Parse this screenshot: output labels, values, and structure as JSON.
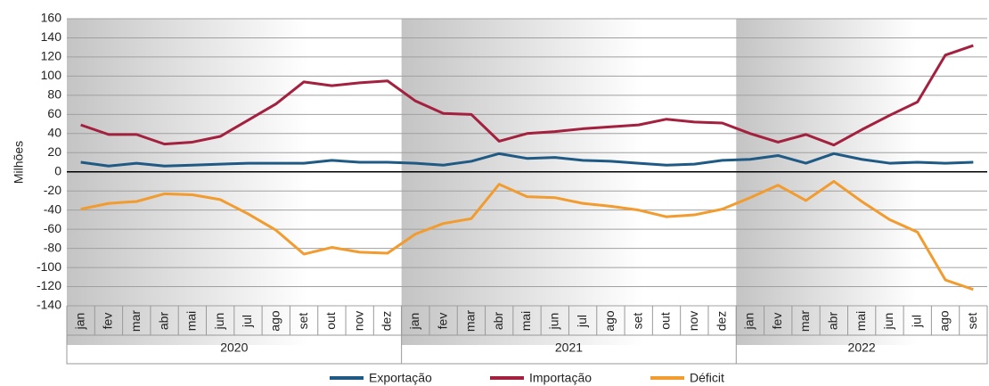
{
  "chart_data": {
    "type": "line",
    "y_label": "Milhões",
    "categories": [
      "jan",
      "fev",
      "mar",
      "abr",
      "mai",
      "jun",
      "jul",
      "ago",
      "set",
      "out",
      "nov",
      "dez",
      "jan",
      "fev",
      "mar",
      "abr",
      "mai",
      "jun",
      "jul",
      "ago",
      "set",
      "out",
      "nov",
      "dez",
      "jan",
      "fev",
      "mar",
      "abr",
      "mai",
      "jun",
      "jul",
      "ago",
      "set"
    ],
    "years": [
      "2020",
      "2021",
      "2022"
    ],
    "series": [
      {
        "name": "Exportação",
        "color": "#1f5a85",
        "values": [
          10,
          6,
          9,
          6,
          7,
          8,
          9,
          9,
          9,
          12,
          10,
          10,
          9,
          7,
          11,
          19,
          14,
          15,
          12,
          11,
          9,
          7,
          8,
          12,
          13,
          17,
          9,
          19,
          13,
          9,
          10,
          9,
          10
        ]
      },
      {
        "name": "Importação",
        "color": "#a3203f",
        "values": [
          49,
          39,
          39,
          29,
          31,
          37,
          54,
          71,
          94,
          90,
          93,
          95,
          74,
          61,
          60,
          32,
          40,
          42,
          45,
          47,
          49,
          55,
          52,
          51,
          40,
          31,
          39,
          28,
          44,
          59,
          73,
          122,
          132
        ]
      },
      {
        "name": "Déficit",
        "color": "#f29b2e",
        "values": [
          -39,
          -33,
          -31,
          -23,
          -24,
          -29,
          -44,
          -61,
          -86,
          -79,
          -84,
          -85,
          -65,
          -54,
          -49,
          -13,
          -26,
          -27,
          -33,
          -36,
          -40,
          -47,
          -45,
          -39,
          -27,
          -14,
          -30,
          -10,
          -31,
          -50,
          -63,
          -113,
          -123
        ]
      }
    ],
    "ylim": [
      -140,
      160
    ],
    "yticks": [
      -140,
      -120,
      -100,
      -80,
      -60,
      -40,
      -20,
      0,
      20,
      40,
      60,
      80,
      100,
      120,
      140,
      160
    ],
    "grid": true
  }
}
